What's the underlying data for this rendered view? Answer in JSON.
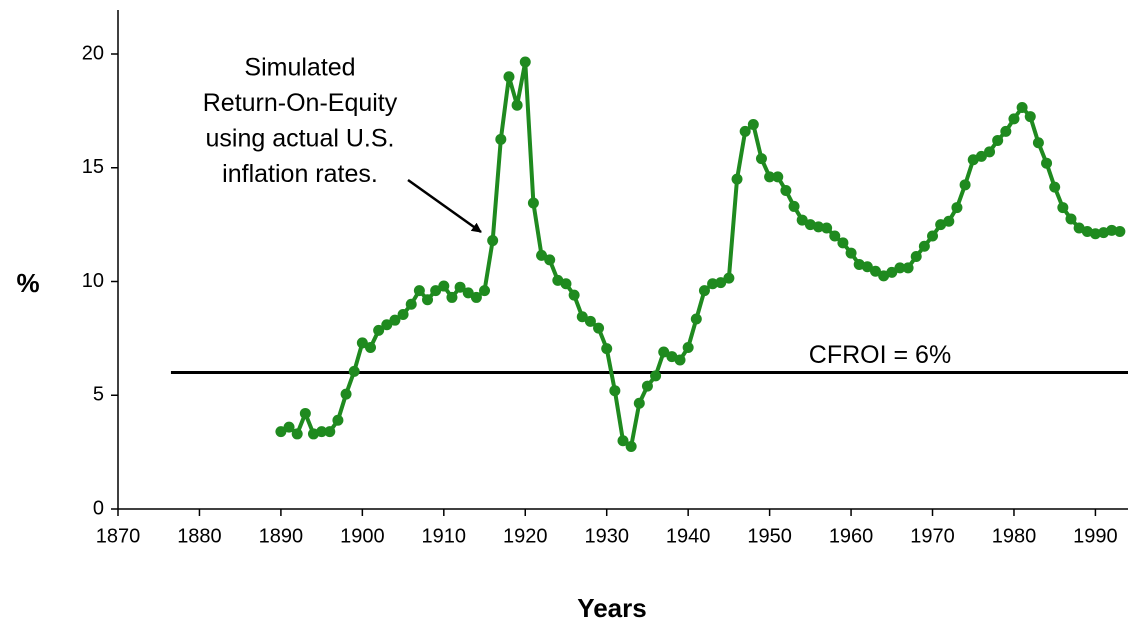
{
  "chart_data": {
    "type": "line",
    "x": [
      1890,
      1891,
      1892,
      1893,
      1894,
      1895,
      1896,
      1897,
      1898,
      1899,
      1900,
      1901,
      1902,
      1903,
      1904,
      1905,
      1906,
      1907,
      1908,
      1909,
      1910,
      1911,
      1912,
      1913,
      1914,
      1915,
      1916,
      1917,
      1918,
      1919,
      1920,
      1921,
      1922,
      1923,
      1924,
      1925,
      1926,
      1927,
      1928,
      1929,
      1930,
      1931,
      1932,
      1933,
      1934,
      1935,
      1936,
      1937,
      1938,
      1939,
      1940,
      1941,
      1942,
      1943,
      1944,
      1945,
      1946,
      1947,
      1948,
      1949,
      1950,
      1951,
      1952,
      1953,
      1954,
      1955,
      1956,
      1957,
      1958,
      1959,
      1960,
      1961,
      1962,
      1963,
      1964,
      1965,
      1966,
      1967,
      1968,
      1969,
      1970,
      1971,
      1972,
      1973,
      1974,
      1975,
      1976,
      1977,
      1978,
      1979,
      1980,
      1981,
      1982,
      1983,
      1984,
      1985,
      1986,
      1987,
      1988,
      1989,
      1990,
      1991,
      1992,
      1993
    ],
    "values": [
      3.4,
      3.6,
      3.3,
      4.2,
      3.3,
      3.4,
      3.4,
      3.9,
      5.05,
      6.05,
      7.3,
      7.1,
      7.85,
      8.1,
      8.3,
      8.55,
      9.0,
      9.6,
      9.2,
      9.6,
      9.8,
      9.3,
      9.75,
      9.5,
      9.3,
      9.6,
      11.8,
      16.25,
      19.0,
      17.75,
      19.65,
      13.45,
      11.15,
      10.95,
      10.05,
      9.9,
      9.4,
      8.45,
      8.25,
      7.95,
      7.05,
      5.2,
      3.0,
      2.75,
      4.65,
      5.4,
      5.85,
      6.9,
      6.7,
      6.55,
      7.1,
      8.35,
      9.6,
      9.9,
      9.95,
      10.15,
      14.5,
      16.6,
      16.9,
      15.4,
      14.6,
      14.6,
      14.0,
      13.3,
      12.7,
      12.5,
      12.4,
      12.35,
      12.0,
      11.7,
      11.25,
      10.75,
      10.65,
      10.45,
      10.25,
      10.4,
      10.6,
      10.6,
      11.1,
      11.55,
      12.0,
      12.5,
      12.65,
      13.25,
      14.25,
      15.35,
      15.5,
      15.7,
      16.2,
      16.6,
      17.15,
      17.65,
      17.25,
      16.1,
      15.2,
      14.15,
      13.25,
      12.75,
      12.35,
      12.2,
      12.1,
      12.15,
      12.25,
      12.2
    ],
    "color": "#1f8a1f",
    "xlabel": "Years",
    "ylabel": "%",
    "xlim": [
      1870,
      1994
    ],
    "ylim": [
      0,
      22
    ],
    "xticks": [
      1870,
      1880,
      1890,
      1900,
      1910,
      1920,
      1930,
      1940,
      1950,
      1960,
      1970,
      1980,
      1990
    ],
    "yticks": [
      0,
      5,
      10,
      15,
      20
    ],
    "grid": false,
    "reference_line": {
      "y": 6,
      "x": [
        1876.5,
        1994
      ],
      "label": "CFROI = 6%",
      "color": "#000000"
    },
    "annotation": [
      "Simulated",
      "Return-On-Equity",
      "using actual U.S.",
      "inflation rates."
    ]
  }
}
